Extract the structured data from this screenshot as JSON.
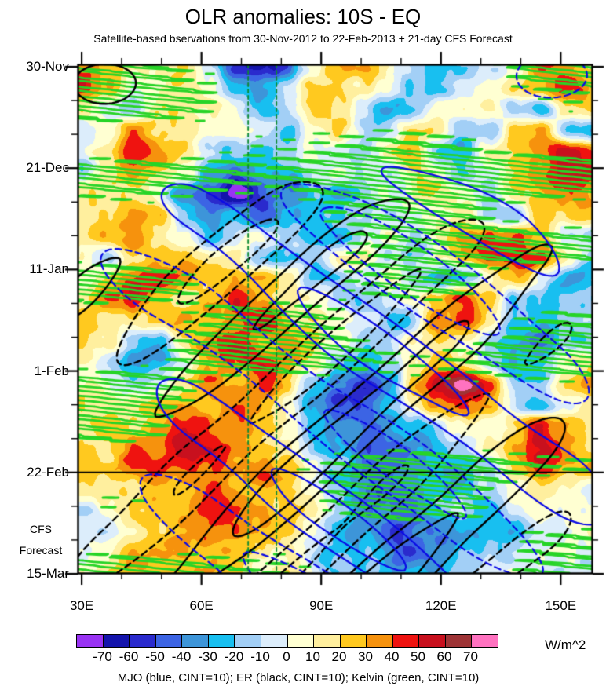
{
  "title": "OLR anomalies: 10S - EQ",
  "subtitle": "Satellite-based bservations from 30-Nov-2012 to 22-Feb-2013 + 21-day CFS Forecast",
  "side_labels": {
    "cfs": "CFS",
    "forecast": "Forecast"
  },
  "caption": "MJO (blue, CINT=10); ER (black, CINT=10); Kelvin (green, CINT=10)",
  "chart_data": {
    "type": "heatmap",
    "title": "OLR anomalies: 10S - EQ",
    "subtitle": "Satellite-based bservations from 30-Nov-2012 to 22-Feb-2013 + 21-day CFS Forecast",
    "x_axis": {
      "tick_labels": [
        "30E",
        "60E",
        "90E",
        "120E",
        "150E"
      ],
      "tick_lons": [
        30,
        60,
        90,
        120,
        150
      ],
      "minor_step_deg": 10,
      "range_deg": [
        29,
        158
      ]
    },
    "y_axis": {
      "tick_labels": [
        "30-Nov",
        "21-Dec",
        "11-Jan",
        "1-Feb",
        "22-Feb",
        "15-Mar"
      ],
      "tick_days": [
        0,
        21,
        42,
        63,
        84,
        105
      ],
      "minor_step_days": 7,
      "range_days": [
        0,
        105
      ]
    },
    "forecast_boundary_day": 84,
    "forecast_boundary_label": "22-Feb",
    "reference_longitudes_deg": [
      71.7,
      78.8
    ],
    "colorbar": {
      "units": "W/m^2",
      "tick_labels": [
        "-70",
        "-60",
        "-50",
        "-40",
        "-30",
        "-20",
        "-10",
        "0",
        "10",
        "20",
        "30",
        "40",
        "50",
        "60",
        "70"
      ],
      "colors": [
        "#9933F3",
        "#1414AC",
        "#2A2ACD",
        "#3C64E4",
        "#3D95D9",
        "#18BFF0",
        "#A2CFF6",
        "#DCEDFB",
        "#FFFFD2",
        "#FFEF9E",
        "#FFC91F",
        "#F6920D",
        "#EF1310",
        "#C8101E",
        "#9E3436",
        "#FF72C0"
      ]
    },
    "waves": [
      {
        "name": "MJO",
        "color_name": "blue",
        "hex": "#0A0AE6",
        "cint": 10
      },
      {
        "name": "ER",
        "color_name": "black",
        "hex": "#000000",
        "cint": 10
      },
      {
        "name": "Kelvin",
        "color_name": "green",
        "hex": "#27D427",
        "cint": 10
      }
    ],
    "grid": {
      "units": "W/m^2",
      "lon_start": 30,
      "lon_step": 6.4,
      "n_lon": 21,
      "day_start": 0,
      "day_step": 4.375,
      "n_day": 25,
      "values": [
        [
          35,
          30,
          15,
          10,
          15,
          -5,
          -45,
          -65,
          -55,
          5,
          35,
          30,
          10,
          -5,
          -30,
          -25,
          -15,
          10,
          45,
          40,
          20
        ],
        [
          40,
          35,
          10,
          5,
          20,
          5,
          -20,
          -30,
          -15,
          25,
          30,
          10,
          0,
          -15,
          -20,
          -5,
          5,
          25,
          35,
          45,
          30
        ],
        [
          15,
          5,
          -15,
          20,
          25,
          10,
          0,
          -15,
          -10,
          20,
          15,
          -5,
          -25,
          -20,
          5,
          15,
          20,
          -10,
          -30,
          15,
          25
        ],
        [
          -10,
          10,
          35,
          30,
          20,
          10,
          5,
          -10,
          -15,
          10,
          20,
          -10,
          -15,
          15,
          20,
          -15,
          -25,
          30,
          40,
          -20,
          -35
        ],
        [
          5,
          25,
          45,
          40,
          25,
          -10,
          -25,
          -30,
          -20,
          5,
          -5,
          -15,
          10,
          20,
          -20,
          -25,
          10,
          30,
          45,
          55,
          40
        ],
        [
          -15,
          20,
          35,
          25,
          10,
          -35,
          -45,
          -35,
          -30,
          -10,
          5,
          -10,
          -15,
          15,
          10,
          -15,
          -10,
          25,
          40,
          55,
          45
        ],
        [
          10,
          15,
          25,
          10,
          -45,
          -60,
          -70,
          -55,
          -35,
          -30,
          -35,
          -25,
          0,
          15,
          20,
          10,
          -15,
          15,
          30,
          35,
          25
        ],
        [
          5,
          10,
          45,
          35,
          -10,
          -35,
          -25,
          -40,
          -25,
          -35,
          -30,
          -15,
          -10,
          5,
          15,
          20,
          -10,
          -15,
          25,
          30,
          20
        ],
        [
          20,
          25,
          30,
          20,
          5,
          -20,
          -15,
          5,
          -15,
          -25,
          -20,
          -5,
          10,
          -10,
          15,
          25,
          40,
          50,
          30,
          -15,
          -25
        ],
        [
          10,
          -15,
          20,
          35,
          25,
          10,
          20,
          -20,
          -25,
          -10,
          10,
          15,
          -15,
          -20,
          10,
          30,
          50,
          55,
          40,
          10,
          -15
        ],
        [
          5,
          20,
          45,
          50,
          35,
          25,
          30,
          40,
          20,
          -15,
          -20,
          -10,
          5,
          -25,
          -35,
          -15,
          20,
          30,
          -10,
          -30,
          -20
        ],
        [
          15,
          30,
          35,
          30,
          20,
          35,
          45,
          35,
          25,
          10,
          -10,
          -20,
          -15,
          5,
          25,
          40,
          25,
          -20,
          -30,
          -15,
          -25
        ],
        [
          25,
          20,
          15,
          30,
          40,
          30,
          25,
          45,
          35,
          15,
          -5,
          -15,
          -20,
          -10,
          35,
          45,
          15,
          -25,
          -35,
          -20,
          -10
        ],
        [
          30,
          15,
          -15,
          -25,
          10,
          30,
          40,
          30,
          40,
          25,
          0,
          -20,
          -10,
          15,
          25,
          10,
          -20,
          -30,
          -40,
          -25,
          -30
        ],
        [
          20,
          -10,
          -35,
          -30,
          -10,
          25,
          45,
          50,
          35,
          20,
          -25,
          -35,
          -15,
          10,
          30,
          20,
          -15,
          -25,
          -15,
          10,
          15
        ],
        [
          15,
          5,
          -20,
          -10,
          20,
          35,
          30,
          40,
          30,
          -20,
          -45,
          -55,
          -35,
          25,
          60,
          75,
          40,
          -15,
          -10,
          20,
          30
        ],
        [
          10,
          20,
          15,
          25,
          30,
          25,
          35,
          25,
          10,
          -30,
          -50,
          -40,
          -20,
          10,
          35,
          40,
          20,
          -15,
          -25,
          -10,
          15
        ],
        [
          25,
          35,
          30,
          20,
          40,
          45,
          30,
          25,
          15,
          -25,
          -40,
          -35,
          -30,
          -20,
          -10,
          5,
          -10,
          20,
          45,
          35,
          20
        ],
        [
          15,
          25,
          40,
          35,
          50,
          40,
          35,
          30,
          20,
          -10,
          -35,
          -45,
          -40,
          -30,
          -20,
          -15,
          10,
          30,
          50,
          25,
          10
        ],
        [
          20,
          30,
          45,
          50,
          40,
          30,
          35,
          40,
          30,
          15,
          -20,
          -40,
          -45,
          -35,
          -30,
          -25,
          -15,
          25,
          45,
          20,
          25
        ],
        [
          10,
          15,
          25,
          35,
          30,
          40,
          30,
          20,
          25,
          10,
          -15,
          -35,
          -50,
          -40,
          -30,
          -20,
          -10,
          5,
          15,
          10,
          -5
        ],
        [
          -10,
          -5,
          20,
          30,
          35,
          40,
          35,
          30,
          20,
          5,
          -20,
          -40,
          -35,
          -45,
          -30,
          -15,
          -20,
          -10,
          5,
          15,
          10
        ],
        [
          -15,
          5,
          15,
          25,
          40,
          45,
          40,
          25,
          15,
          -5,
          -25,
          -35,
          -45,
          -35,
          -40,
          -30,
          -15,
          -20,
          -10,
          5,
          15
        ],
        [
          -5,
          10,
          20,
          30,
          35,
          30,
          30,
          20,
          5,
          -10,
          -20,
          -30,
          -35,
          -45,
          -35,
          -25,
          -20,
          -10,
          0,
          10,
          5
        ],
        [
          5,
          15,
          25,
          20,
          25,
          35,
          25,
          15,
          10,
          0,
          -15,
          -25,
          -30,
          -25,
          -30,
          -20,
          -10,
          -5,
          5,
          0,
          -5
        ]
      ]
    }
  }
}
